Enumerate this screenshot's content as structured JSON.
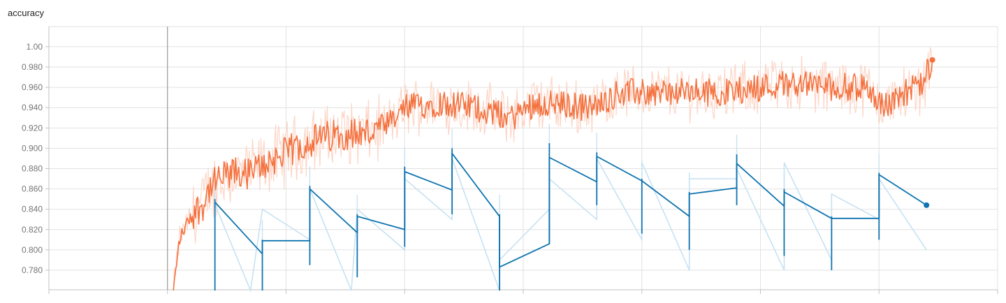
{
  "title": "accuracy",
  "colors": {
    "train_smoothed": "#f4713e",
    "train_raw": "#fcd6c8",
    "eval_smoothed": "#0e74b0",
    "eval_raw": "#c7e2f2",
    "grid": "#e1e1e1",
    "axis": "#c2c2c2",
    "marker_line": "#8a8a8a",
    "tick_text": "#757575"
  },
  "chart_data": {
    "type": "line",
    "title": "accuracy",
    "xlabel": "",
    "ylabel": "",
    "ylim": [
      0.76,
      1.02
    ],
    "xlim": [
      0,
      8
    ],
    "grid": true,
    "y_ticks": [
      0.78,
      0.8,
      0.82,
      0.84,
      0.86,
      0.88,
      0.9,
      0.92,
      0.94,
      0.96,
      0.98,
      1.0
    ],
    "y_tick_labels": [
      "0.780",
      "0.800",
      "0.820",
      "0.840",
      "0.860",
      "0.880",
      "0.900",
      "0.920",
      "0.940",
      "0.960",
      "0.980",
      "1.00"
    ],
    "x_gridlines": [
      0,
      1,
      2,
      3,
      4,
      5,
      6,
      7,
      8
    ],
    "vertical_marker_x": 1,
    "series": [
      {
        "role": "train",
        "x_start": 1.05,
        "x_end": 7.45,
        "anchors": [
          [
            1.05,
            0.76
          ],
          [
            1.1,
            0.81
          ],
          [
            1.2,
            0.835
          ],
          [
            1.3,
            0.845
          ],
          [
            1.35,
            0.86
          ],
          [
            1.45,
            0.87
          ],
          [
            1.55,
            0.875
          ],
          [
            1.7,
            0.875
          ],
          [
            1.85,
            0.887
          ],
          [
            2.0,
            0.895
          ],
          [
            2.15,
            0.905
          ],
          [
            2.3,
            0.91
          ],
          [
            2.5,
            0.915
          ],
          [
            2.7,
            0.915
          ],
          [
            2.9,
            0.925
          ],
          [
            3.0,
            0.94
          ],
          [
            3.3,
            0.945
          ],
          [
            3.6,
            0.94
          ],
          [
            3.9,
            0.93
          ],
          [
            4.1,
            0.945
          ],
          [
            4.4,
            0.942
          ],
          [
            4.6,
            0.94
          ],
          [
            4.8,
            0.955
          ],
          [
            5.1,
            0.955
          ],
          [
            5.4,
            0.955
          ],
          [
            5.7,
            0.955
          ],
          [
            6.0,
            0.96
          ],
          [
            6.3,
            0.965
          ],
          [
            6.6,
            0.96
          ],
          [
            6.9,
            0.96
          ],
          [
            7.05,
            0.94
          ],
          [
            7.2,
            0.955
          ],
          [
            7.35,
            0.96
          ],
          [
            7.45,
            0.987
          ]
        ],
        "smoothed_end_value": 0.987
      },
      {
        "role": "eval",
        "smoothed": [
          [
            1.4,
            0.847
          ],
          [
            1.8,
            0.796
          ],
          [
            1.8,
            0.809
          ],
          [
            2.2,
            0.809
          ],
          [
            2.2,
            0.86
          ],
          [
            2.6,
            0.817
          ],
          [
            2.6,
            0.833
          ],
          [
            3.0,
            0.82
          ],
          [
            3.0,
            0.877
          ],
          [
            3.4,
            0.859
          ],
          [
            3.4,
            0.895
          ],
          [
            3.8,
            0.833
          ],
          [
            3.8,
            0.783
          ],
          [
            4.22,
            0.806
          ],
          [
            4.22,
            0.891
          ],
          [
            4.62,
            0.867
          ],
          [
            4.62,
            0.892
          ],
          [
            5.0,
            0.868
          ],
          [
            5.0,
            0.868
          ],
          [
            5.4,
            0.833
          ],
          [
            5.4,
            0.855
          ],
          [
            5.8,
            0.861
          ],
          [
            5.8,
            0.885
          ],
          [
            6.2,
            0.843
          ],
          [
            6.2,
            0.857
          ],
          [
            6.6,
            0.831
          ],
          [
            6.6,
            0.831
          ],
          [
            7.0,
            0.831
          ],
          [
            7.0,
            0.874
          ],
          [
            7.4,
            0.844
          ]
        ],
        "raw": [
          [
            1.4,
            0.845
          ],
          [
            1.7,
            0.76
          ],
          [
            1.8,
            0.84
          ],
          [
            2.2,
            0.81
          ],
          [
            2.2,
            0.86
          ],
          [
            2.55,
            0.76
          ],
          [
            2.6,
            0.84
          ],
          [
            3.0,
            0.8
          ],
          [
            3.0,
            0.87
          ],
          [
            3.4,
            0.83
          ],
          [
            3.4,
            0.89
          ],
          [
            3.8,
            0.76
          ],
          [
            3.8,
            0.79
          ],
          [
            4.22,
            0.84
          ],
          [
            4.22,
            0.87
          ],
          [
            4.62,
            0.83
          ],
          [
            4.62,
            0.89
          ],
          [
            5.0,
            0.81
          ],
          [
            5.0,
            0.886
          ],
          [
            5.4,
            0.78
          ],
          [
            5.4,
            0.87
          ],
          [
            5.8,
            0.87
          ],
          [
            5.8,
            0.88
          ],
          [
            6.2,
            0.78
          ],
          [
            6.2,
            0.886
          ],
          [
            6.6,
            0.79
          ],
          [
            6.6,
            0.855
          ],
          [
            7.0,
            0.83
          ],
          [
            7.0,
            0.87
          ],
          [
            7.4,
            0.8
          ]
        ],
        "vertical_spikes": [
          [
            1.4,
            0.76,
            0.85
          ],
          [
            1.8,
            0.76,
            0.81
          ],
          [
            2.2,
            0.785,
            0.863
          ],
          [
            2.6,
            0.773,
            0.835
          ],
          [
            3.0,
            0.803,
            0.882
          ],
          [
            3.4,
            0.835,
            0.9
          ],
          [
            3.8,
            0.76,
            0.835
          ],
          [
            4.22,
            0.806,
            0.905
          ],
          [
            4.62,
            0.844,
            0.896
          ],
          [
            5.0,
            0.816,
            0.87
          ],
          [
            5.4,
            0.8,
            0.857
          ],
          [
            5.8,
            0.844,
            0.894
          ],
          [
            6.2,
            0.794,
            0.86
          ],
          [
            6.6,
            0.78,
            0.833
          ],
          [
            7.0,
            0.81,
            0.876
          ]
        ],
        "smoothed_end_value": 0.844
      }
    ]
  }
}
